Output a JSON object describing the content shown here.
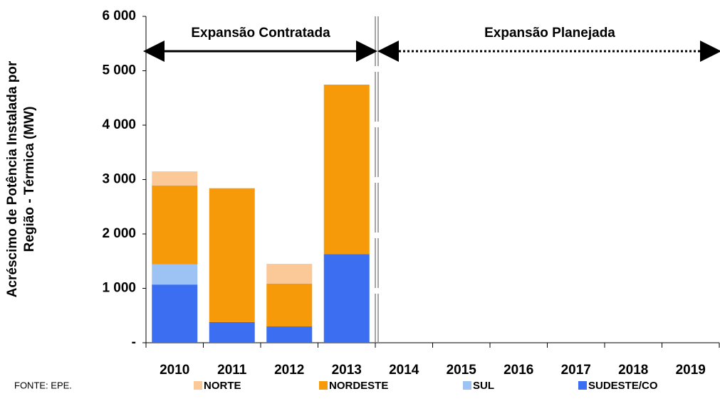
{
  "chart_data": {
    "type": "stacked_bar",
    "y_label": [
      "Acréscimo de Potência Instalada por",
      "Região - Térmica (MW)"
    ],
    "categories": [
      "2010",
      "2011",
      "2012",
      "2013",
      "2014",
      "2015",
      "2016",
      "2017",
      "2018",
      "2019"
    ],
    "series": [
      {
        "name": "NORTE",
        "color": "#fbc898",
        "values": [
          260,
          0,
          365,
          0,
          null,
          null,
          null,
          null,
          null,
          null
        ]
      },
      {
        "name": "NORDESTE",
        "color": "#f79a0a",
        "values": [
          1450,
          2460,
          785,
          3115,
          null,
          null,
          null,
          null,
          null,
          null
        ]
      },
      {
        "name": "SUL",
        "color": "#9dc3f5",
        "values": [
          370,
          0,
          0,
          0,
          null,
          null,
          null,
          null,
          null,
          null
        ]
      },
      {
        "name": "SUDESTE/CO",
        "color": "#3b6ef0",
        "values": [
          1070,
          380,
          300,
          1630,
          null,
          null,
          null,
          null,
          null,
          null
        ]
      }
    ],
    "ylim": [
      0,
      6000
    ],
    "yticks": [
      {
        "value": 0,
        "label": "-"
      },
      {
        "value": 1000,
        "label": "1 000"
      },
      {
        "value": 2000,
        "label": "2 000"
      },
      {
        "value": 3000,
        "label": "3 000"
      },
      {
        "value": 4000,
        "label": "4 000"
      },
      {
        "value": 5000,
        "label": "5 000"
      },
      {
        "value": 6000,
        "label": "6 000"
      }
    ],
    "annotations": [
      "Expansão Contratada",
      "Expansão Planejada"
    ],
    "source": "FONTE: EPE."
  }
}
